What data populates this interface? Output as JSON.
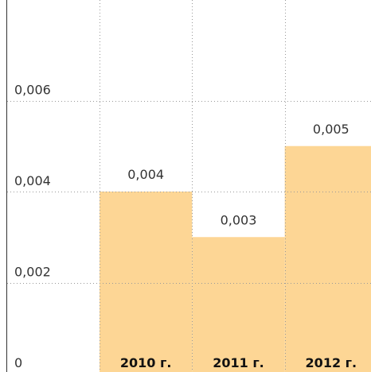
{
  "chart_data": {
    "type": "bar",
    "categories": [
      "2010 г.",
      "2011 г.",
      "2012 г."
    ],
    "values": [
      0.004,
      0.003,
      0.005
    ],
    "value_labels": [
      "0,004",
      "0,003",
      "0,005"
    ],
    "color": "#fdd695",
    "ylim": [
      0,
      0.008
    ],
    "yticks": [
      0,
      {
        "value": 0.002,
        "label": "0,002"
      },
      {
        "value": 0.004,
        "label": "0,004"
      },
      {
        "value": 0.006,
        "label": "0,006"
      }
    ],
    "grid": true
  }
}
